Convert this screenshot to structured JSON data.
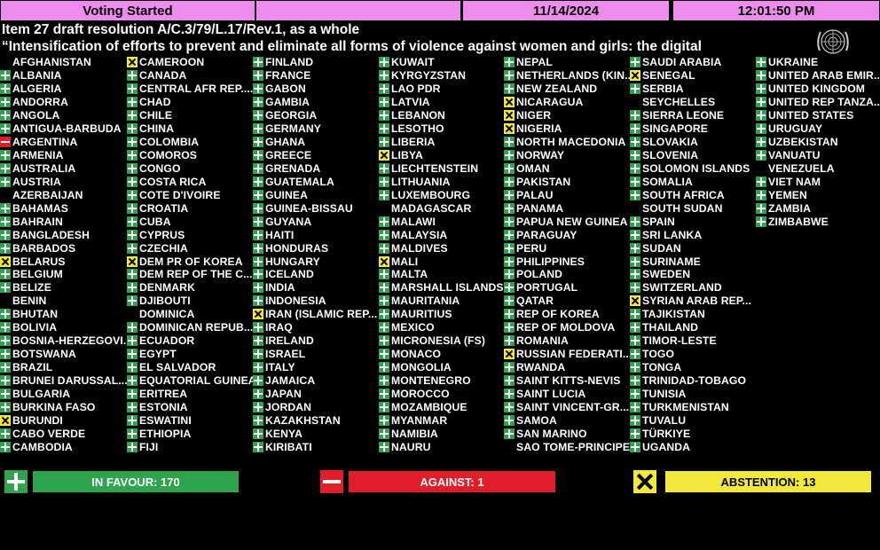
{
  "header": {
    "status": "Voting Started",
    "date": "11/14/2024",
    "time": "12:01:50 PM",
    "title_line1": "Item 27 draft resolution A/C.3/79/L.17/Rev.1, as a whole",
    "title_line2": "“Intensification of efforts to prevent and eliminate all forms of violence against women and girls: the digital"
  },
  "colors": {
    "yes": "#2ea44f",
    "no": "#e21d2a",
    "abstain": "#f2e83a",
    "bar": "#ee8cee"
  },
  "columns": [
    [
      {
        "name": "AFGHANISTAN",
        "vote": "none"
      },
      {
        "name": "ALBANIA",
        "vote": "yes"
      },
      {
        "name": "ALGERIA",
        "vote": "yes"
      },
      {
        "name": "ANDORRA",
        "vote": "yes"
      },
      {
        "name": "ANGOLA",
        "vote": "yes"
      },
      {
        "name": "ANTIGUA-BARBUDA",
        "vote": "yes"
      },
      {
        "name": "ARGENTINA",
        "vote": "no"
      },
      {
        "name": "ARMENIA",
        "vote": "yes"
      },
      {
        "name": "AUSTRALIA",
        "vote": "yes"
      },
      {
        "name": "AUSTRIA",
        "vote": "yes"
      },
      {
        "name": "AZERBAIJAN",
        "vote": "none"
      },
      {
        "name": "BAHAMAS",
        "vote": "yes"
      },
      {
        "name": "BAHRAIN",
        "vote": "yes"
      },
      {
        "name": "BANGLADESH",
        "vote": "yes"
      },
      {
        "name": "BARBADOS",
        "vote": "yes"
      },
      {
        "name": "BELARUS",
        "vote": "abs"
      },
      {
        "name": "BELGIUM",
        "vote": "yes"
      },
      {
        "name": "BELIZE",
        "vote": "yes"
      },
      {
        "name": "BENIN",
        "vote": "none"
      },
      {
        "name": "BHUTAN",
        "vote": "yes"
      },
      {
        "name": "BOLIVIA",
        "vote": "yes"
      },
      {
        "name": "BOSNIA-HERZEGOVI...",
        "vote": "yes"
      },
      {
        "name": "BOTSWANA",
        "vote": "yes"
      },
      {
        "name": "BRAZIL",
        "vote": "yes"
      },
      {
        "name": "BRUNEI DARUSSAL...",
        "vote": "yes"
      },
      {
        "name": "BULGARIA",
        "vote": "yes"
      },
      {
        "name": "BURKINA FASO",
        "vote": "yes"
      },
      {
        "name": "BURUNDI",
        "vote": "abs"
      },
      {
        "name": "CABO VERDE",
        "vote": "yes"
      },
      {
        "name": "CAMBODIA",
        "vote": "yes"
      }
    ],
    [
      {
        "name": "CAMEROON",
        "vote": "abs"
      },
      {
        "name": "CANADA",
        "vote": "yes"
      },
      {
        "name": "CENTRAL AFR REP....",
        "vote": "yes"
      },
      {
        "name": "CHAD",
        "vote": "yes"
      },
      {
        "name": "CHILE",
        "vote": "yes"
      },
      {
        "name": "CHINA",
        "vote": "yes"
      },
      {
        "name": "COLOMBIA",
        "vote": "yes"
      },
      {
        "name": "COMOROS",
        "vote": "yes"
      },
      {
        "name": "CONGO",
        "vote": "yes"
      },
      {
        "name": "COSTA RICA",
        "vote": "yes"
      },
      {
        "name": "COTE D'IVOIRE",
        "vote": "yes"
      },
      {
        "name": "CROATIA",
        "vote": "yes"
      },
      {
        "name": "CUBA",
        "vote": "yes"
      },
      {
        "name": "CYPRUS",
        "vote": "yes"
      },
      {
        "name": "CZECHIA",
        "vote": "yes"
      },
      {
        "name": "DEM PR OF KOREA",
        "vote": "abs"
      },
      {
        "name": "DEM REP OF THE C...",
        "vote": "yes"
      },
      {
        "name": "DENMARK",
        "vote": "yes"
      },
      {
        "name": "DJIBOUTI",
        "vote": "yes"
      },
      {
        "name": "DOMINICA",
        "vote": "none"
      },
      {
        "name": "DOMINICAN REPUB...",
        "vote": "yes"
      },
      {
        "name": "ECUADOR",
        "vote": "yes"
      },
      {
        "name": "EGYPT",
        "vote": "yes"
      },
      {
        "name": "EL SALVADOR",
        "vote": "yes"
      },
      {
        "name": "EQUATORIAL GUINEA",
        "vote": "yes"
      },
      {
        "name": "ERITREA",
        "vote": "yes"
      },
      {
        "name": "ESTONIA",
        "vote": "yes"
      },
      {
        "name": "ESWATINI",
        "vote": "yes"
      },
      {
        "name": "ETHIOPIA",
        "vote": "yes"
      },
      {
        "name": "FIJI",
        "vote": "yes"
      }
    ],
    [
      {
        "name": "FINLAND",
        "vote": "yes"
      },
      {
        "name": "FRANCE",
        "vote": "yes"
      },
      {
        "name": "GABON",
        "vote": "yes"
      },
      {
        "name": "GAMBIA",
        "vote": "yes"
      },
      {
        "name": "GEORGIA",
        "vote": "yes"
      },
      {
        "name": "GERMANY",
        "vote": "yes"
      },
      {
        "name": "GHANA",
        "vote": "yes"
      },
      {
        "name": "GREECE",
        "vote": "yes"
      },
      {
        "name": "GRENADA",
        "vote": "yes"
      },
      {
        "name": "GUATEMALA",
        "vote": "yes"
      },
      {
        "name": "GUINEA",
        "vote": "yes"
      },
      {
        "name": "GUINEA-BISSAU",
        "vote": "yes"
      },
      {
        "name": "GUYANA",
        "vote": "yes"
      },
      {
        "name": "HAITI",
        "vote": "yes"
      },
      {
        "name": "HONDURAS",
        "vote": "yes"
      },
      {
        "name": "HUNGARY",
        "vote": "yes"
      },
      {
        "name": "ICELAND",
        "vote": "yes"
      },
      {
        "name": "INDIA",
        "vote": "yes"
      },
      {
        "name": "INDONESIA",
        "vote": "yes"
      },
      {
        "name": "IRAN (ISLAMIC REP...",
        "vote": "abs"
      },
      {
        "name": "IRAQ",
        "vote": "yes"
      },
      {
        "name": "IRELAND",
        "vote": "yes"
      },
      {
        "name": "ISRAEL",
        "vote": "yes"
      },
      {
        "name": "ITALY",
        "vote": "yes"
      },
      {
        "name": "JAMAICA",
        "vote": "yes"
      },
      {
        "name": "JAPAN",
        "vote": "yes"
      },
      {
        "name": "JORDAN",
        "vote": "yes"
      },
      {
        "name": "KAZAKHSTAN",
        "vote": "yes"
      },
      {
        "name": "KENYA",
        "vote": "yes"
      },
      {
        "name": "KIRIBATI",
        "vote": "yes"
      }
    ],
    [
      {
        "name": "KUWAIT",
        "vote": "yes"
      },
      {
        "name": "KYRGYZSTAN",
        "vote": "yes"
      },
      {
        "name": "LAO PDR",
        "vote": "yes"
      },
      {
        "name": "LATVIA",
        "vote": "yes"
      },
      {
        "name": "LEBANON",
        "vote": "yes"
      },
      {
        "name": "LESOTHO",
        "vote": "yes"
      },
      {
        "name": "LIBERIA",
        "vote": "yes"
      },
      {
        "name": "LIBYA",
        "vote": "abs"
      },
      {
        "name": "LIECHTENSTEIN",
        "vote": "yes"
      },
      {
        "name": "LITHUANIA",
        "vote": "yes"
      },
      {
        "name": "LUXEMBOURG",
        "vote": "yes"
      },
      {
        "name": "MADAGASCAR",
        "vote": "none"
      },
      {
        "name": "MALAWI",
        "vote": "yes"
      },
      {
        "name": "MALAYSIA",
        "vote": "yes"
      },
      {
        "name": "MALDIVES",
        "vote": "yes"
      },
      {
        "name": "MALI",
        "vote": "abs"
      },
      {
        "name": "MALTA",
        "vote": "yes"
      },
      {
        "name": "MARSHALL ISLANDS",
        "vote": "yes"
      },
      {
        "name": "MAURITANIA",
        "vote": "yes"
      },
      {
        "name": "MAURITIUS",
        "vote": "yes"
      },
      {
        "name": "MEXICO",
        "vote": "yes"
      },
      {
        "name": "MICRONESIA (FS)",
        "vote": "yes"
      },
      {
        "name": "MONACO",
        "vote": "yes"
      },
      {
        "name": "MONGOLIA",
        "vote": "yes"
      },
      {
        "name": "MONTENEGRO",
        "vote": "yes"
      },
      {
        "name": "MOROCCO",
        "vote": "yes"
      },
      {
        "name": "MOZAMBIQUE",
        "vote": "yes"
      },
      {
        "name": "MYANMAR",
        "vote": "yes"
      },
      {
        "name": "NAMIBIA",
        "vote": "yes"
      },
      {
        "name": "NAURU",
        "vote": "yes"
      }
    ],
    [
      {
        "name": "NEPAL",
        "vote": "yes"
      },
      {
        "name": "NETHERLANDS (KIN...",
        "vote": "yes"
      },
      {
        "name": "NEW ZEALAND",
        "vote": "yes"
      },
      {
        "name": "NICARAGUA",
        "vote": "abs"
      },
      {
        "name": "NIGER",
        "vote": "abs"
      },
      {
        "name": "NIGERIA",
        "vote": "abs"
      },
      {
        "name": "NORTH MACEDONIA",
        "vote": "yes"
      },
      {
        "name": "NORWAY",
        "vote": "yes"
      },
      {
        "name": "OMAN",
        "vote": "yes"
      },
      {
        "name": "PAKISTAN",
        "vote": "yes"
      },
      {
        "name": "PALAU",
        "vote": "yes"
      },
      {
        "name": "PANAMA",
        "vote": "yes"
      },
      {
        "name": "PAPUA NEW GUINEA",
        "vote": "yes"
      },
      {
        "name": "PARAGUAY",
        "vote": "yes"
      },
      {
        "name": "PERU",
        "vote": "yes"
      },
      {
        "name": "PHILIPPINES",
        "vote": "yes"
      },
      {
        "name": "POLAND",
        "vote": "yes"
      },
      {
        "name": "PORTUGAL",
        "vote": "yes"
      },
      {
        "name": "QATAR",
        "vote": "yes"
      },
      {
        "name": "REP OF KOREA",
        "vote": "yes"
      },
      {
        "name": "REP OF MOLDOVA",
        "vote": "yes"
      },
      {
        "name": "ROMANIA",
        "vote": "yes"
      },
      {
        "name": "RUSSIAN FEDERATI...",
        "vote": "abs"
      },
      {
        "name": "RWANDA",
        "vote": "yes"
      },
      {
        "name": "SAINT KITTS-NEVIS",
        "vote": "yes"
      },
      {
        "name": "SAINT LUCIA",
        "vote": "yes"
      },
      {
        "name": "SAINT VINCENT-GR...",
        "vote": "yes"
      },
      {
        "name": "SAMOA",
        "vote": "yes"
      },
      {
        "name": "SAN MARINO",
        "vote": "yes"
      },
      {
        "name": "SAO TOME-PRINCIPE",
        "vote": "none"
      }
    ],
    [
      {
        "name": "SAUDI ARABIA",
        "vote": "yes"
      },
      {
        "name": "SENEGAL",
        "vote": "abs"
      },
      {
        "name": "SERBIA",
        "vote": "yes"
      },
      {
        "name": "SEYCHELLES",
        "vote": "none"
      },
      {
        "name": "SIERRA LEONE",
        "vote": "yes"
      },
      {
        "name": "SINGAPORE",
        "vote": "yes"
      },
      {
        "name": "SLOVAKIA",
        "vote": "yes"
      },
      {
        "name": "SLOVENIA",
        "vote": "yes"
      },
      {
        "name": "SOLOMON ISLANDS",
        "vote": "yes"
      },
      {
        "name": "SOMALIA",
        "vote": "yes"
      },
      {
        "name": "SOUTH AFRICA",
        "vote": "yes"
      },
      {
        "name": "SOUTH SUDAN",
        "vote": "none"
      },
      {
        "name": "SPAIN",
        "vote": "yes"
      },
      {
        "name": "SRI LANKA",
        "vote": "yes"
      },
      {
        "name": "SUDAN",
        "vote": "yes"
      },
      {
        "name": "SURINAME",
        "vote": "yes"
      },
      {
        "name": "SWEDEN",
        "vote": "yes"
      },
      {
        "name": "SWITZERLAND",
        "vote": "yes"
      },
      {
        "name": "SYRIAN ARAB REP...",
        "vote": "abs"
      },
      {
        "name": "TAJIKISTAN",
        "vote": "yes"
      },
      {
        "name": "THAILAND",
        "vote": "yes"
      },
      {
        "name": "TIMOR-LESTE",
        "vote": "yes"
      },
      {
        "name": "TOGO",
        "vote": "yes"
      },
      {
        "name": "TONGA",
        "vote": "yes"
      },
      {
        "name": "TRINIDAD-TOBAGO",
        "vote": "yes"
      },
      {
        "name": "TUNISIA",
        "vote": "yes"
      },
      {
        "name": "TURKMENISTAN",
        "vote": "yes"
      },
      {
        "name": "TUVALU",
        "vote": "yes"
      },
      {
        "name": "TÜRKIYE",
        "vote": "yes"
      },
      {
        "name": "UGANDA",
        "vote": "yes"
      }
    ],
    [
      {
        "name": "UKRAINE",
        "vote": "yes"
      },
      {
        "name": "UNITED ARAB EMIR...",
        "vote": "yes"
      },
      {
        "name": "UNITED KINGDOM",
        "vote": "yes"
      },
      {
        "name": "UNITED REP TANZA...",
        "vote": "yes"
      },
      {
        "name": "UNITED STATES",
        "vote": "yes"
      },
      {
        "name": "URUGUAY",
        "vote": "yes"
      },
      {
        "name": "UZBEKISTAN",
        "vote": "yes"
      },
      {
        "name": "VANUATU",
        "vote": "yes"
      },
      {
        "name": "VENEZUELA",
        "vote": "none"
      },
      {
        "name": "VIET NAM",
        "vote": "yes"
      },
      {
        "name": "YEMEN",
        "vote": "yes"
      },
      {
        "name": "ZAMBIA",
        "vote": "yes"
      },
      {
        "name": "ZIMBABWE",
        "vote": "yes"
      }
    ]
  ],
  "totals": {
    "in_favour": "IN FAVOUR: 170",
    "against": "AGAINST: 1",
    "abstention": "ABSTENTION: 13"
  }
}
